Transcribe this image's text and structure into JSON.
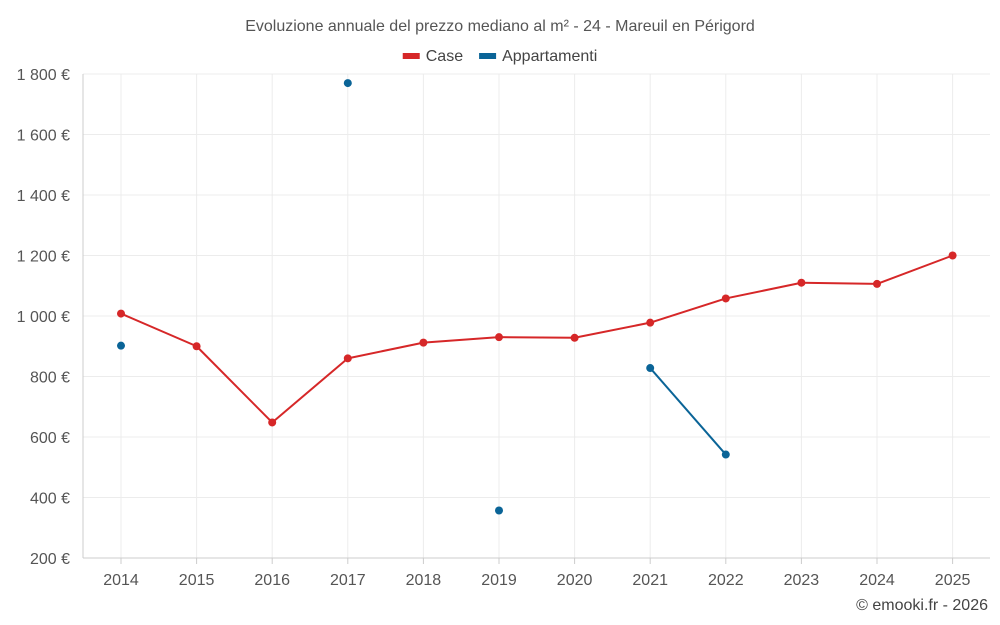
{
  "chart_data": {
    "type": "line",
    "title": "Evoluzione annuale del prezzo mediano al m² - 24 - Mareuil en Périgord",
    "categories": [
      "2014",
      "2015",
      "2016",
      "2017",
      "2018",
      "2019",
      "2020",
      "2021",
      "2022",
      "2023",
      "2024",
      "2025"
    ],
    "series": [
      {
        "name": "Case",
        "color": "#d62728",
        "values": [
          1008,
          900,
          648,
          860,
          912,
          930,
          928,
          978,
          1058,
          1110,
          1106,
          1200
        ]
      },
      {
        "name": "Appartamenti",
        "color": "#0a6497",
        "values": [
          902,
          null,
          null,
          1770,
          null,
          357,
          null,
          828,
          542,
          null,
          null,
          null
        ]
      }
    ],
    "ylim": [
      200,
      1800
    ],
    "yticks": [
      200,
      400,
      600,
      800,
      1000,
      1200,
      1400,
      1600,
      1800
    ],
    "ytick_labels": [
      "200 €",
      "400 €",
      "600 €",
      "800 €",
      "1 000 €",
      "1 200 €",
      "1 400 €",
      "1 600 €",
      "1 800 €"
    ],
    "xlabel": "",
    "ylabel": "",
    "grid": true,
    "legend_position": "top-center",
    "credit": "© emooki.fr - 2026"
  }
}
